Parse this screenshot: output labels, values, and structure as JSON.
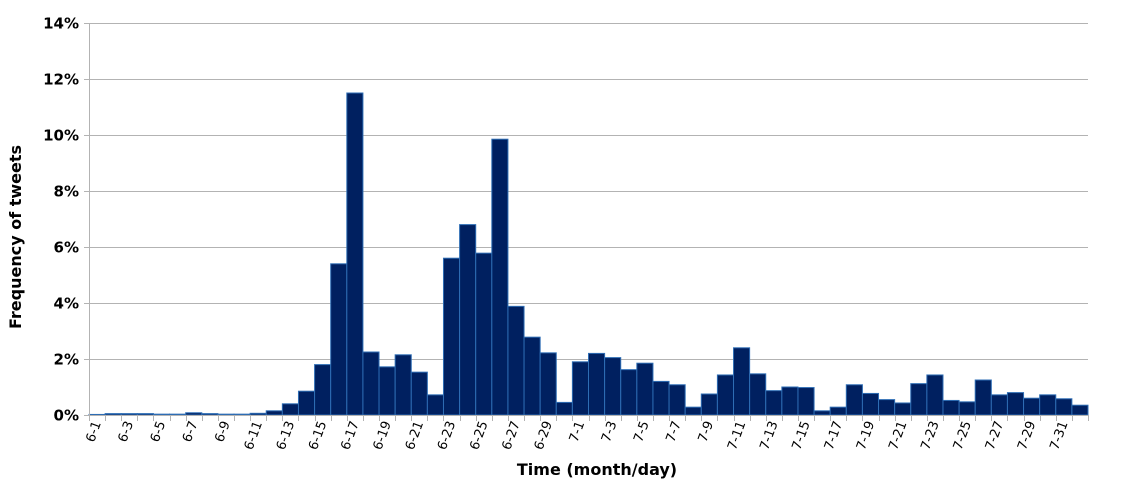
{
  "chart_data": {
    "type": "bar",
    "title": "",
    "xlabel": "Time (month/day)",
    "ylabel": "Frequency of tweets",
    "ylim": [
      0,
      14
    ],
    "y_ticks": [
      0,
      2,
      4,
      6,
      8,
      10,
      12,
      14
    ],
    "y_tick_labels": [
      "0%",
      "2%",
      "4%",
      "6%",
      "8%",
      "10%",
      "12%",
      "14%"
    ],
    "grid": true,
    "legend": "none",
    "bar_color": "#002060",
    "bar_edge_color": "#2e6db4",
    "grid_color": "#b3b3b3",
    "categories": [
      "6-1",
      "6-2",
      "6-3",
      "6-4",
      "6-5",
      "6-6",
      "6-7",
      "6-8",
      "6-9",
      "6-10",
      "6-11",
      "6-12",
      "6-13",
      "6-14",
      "6-15",
      "6-16",
      "6-17",
      "6-18",
      "6-19",
      "6-20",
      "6-21",
      "6-22",
      "6-23",
      "6-24",
      "6-25",
      "6-26",
      "6-27",
      "6-28",
      "6-29",
      "6-30",
      "7-1",
      "7-2",
      "7-3",
      "7-4",
      "7-5",
      "7-6",
      "7-7",
      "7-8",
      "7-9",
      "7-10",
      "7-11",
      "7-12",
      "7-13",
      "7-14",
      "7-15",
      "7-16",
      "7-17",
      "7-18",
      "7-19",
      "7-20",
      "7-21",
      "7-22",
      "7-23",
      "7-24",
      "7-25",
      "7-26",
      "7-27",
      "7-28",
      "7-29",
      "7-30",
      "7-31",
      "8-1"
    ],
    "x_tick_labels": [
      "6-1",
      "6-3",
      "6-5",
      "6-7",
      "6-9",
      "6-11",
      "6-13",
      "6-15",
      "6-17",
      "6-19",
      "6-21",
      "6-23",
      "6-25",
      "6-27",
      "6-29",
      "7-1",
      "7-3",
      "7-5",
      "7-7",
      "7-9",
      "7-11",
      "7-13",
      "7-15",
      "7-17",
      "7-19",
      "7-21",
      "7-23",
      "7-25",
      "7-27",
      "7-29",
      "7-31"
    ],
    "values": [
      0.02,
      0.05,
      0.05,
      0.05,
      0.03,
      0.03,
      0.08,
      0.05,
      0.03,
      0.03,
      0.06,
      0.15,
      0.4,
      0.85,
      1.8,
      5.4,
      11.5,
      2.25,
      1.72,
      2.15,
      1.53,
      0.72,
      5.6,
      6.8,
      5.78,
      9.85,
      3.88,
      2.78,
      2.22,
      0.45,
      1.9,
      2.2,
      2.05,
      1.62,
      1.85,
      1.2,
      1.08,
      0.28,
      0.75,
      1.43,
      2.4,
      1.47,
      0.87,
      1.0,
      0.98,
      0.15,
      0.28,
      1.08,
      0.77,
      0.55,
      0.43,
      1.12,
      1.43,
      0.52,
      0.47,
      1.25,
      0.72,
      0.8,
      0.6,
      0.72,
      0.58,
      0.35
    ]
  }
}
